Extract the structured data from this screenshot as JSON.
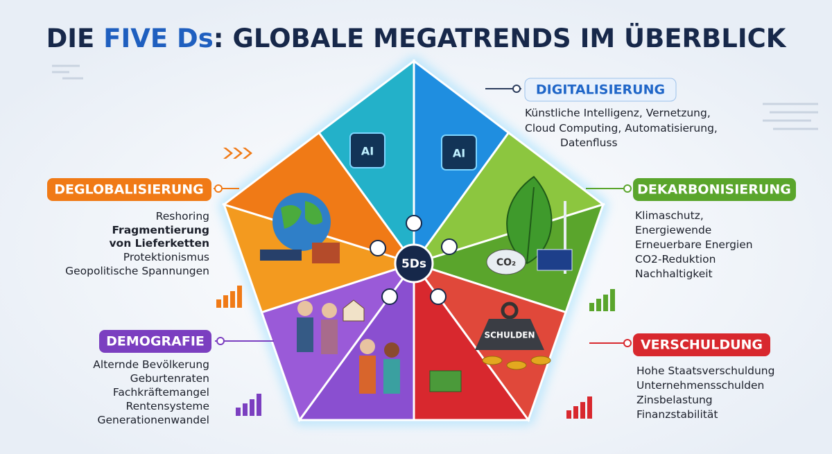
{
  "header": {
    "title_start": "DIE ",
    "title_highlight": "FIVE Ds",
    "title_end": ": GLOBALE MEGATRENDS IM ÜBERBLICK"
  },
  "center": {
    "label": "5Ds"
  },
  "sections": [
    {
      "label": "DIGITALISIERUNG",
      "items": [
        "Künstliche Intelligenz, Vernetzung,",
        "Cloud Computing, Automatisierung,",
        "Datenfluss"
      ],
      "icon_texts": [
        "AI",
        "AI"
      ]
    },
    {
      "label": "DEKARBONISIERUNG",
      "items": [
        "Klimaschutz,",
        "Energiewende",
        "Erneuerbare Energien",
        "CO2-Reduktion",
        "Nachhaltigkeit"
      ],
      "icon_texts": [
        "CO₂"
      ]
    },
    {
      "label": "VERSCHULDUNG",
      "items": [
        "Hohe Staatsverschuldung",
        "Unternehmensschulden",
        "Zinsbelastung",
        "Finanzstabilität"
      ],
      "icon_texts": [
        "SCHULDEN"
      ]
    },
    {
      "label": "DEMOGRAFIE",
      "items": [
        "Alternde Bevölkerung",
        "Geburtenraten",
        "Fachkräftemangel",
        "Rentensysteme",
        "Generationenwandel"
      ]
    },
    {
      "label": "DEGLOBALISIERUNG",
      "items": [
        "Reshoring",
        "Fragmentierung",
        "von Lieferketten",
        "Protektionismus",
        "Geopolitische Spannungen"
      ]
    }
  ]
}
